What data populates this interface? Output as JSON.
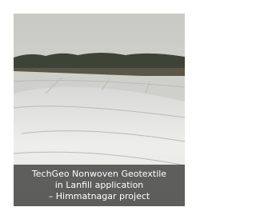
{
  "caption": {
    "lines": [
      "TechGeo Nonwoven Geotextile",
      "in Lanfill application",
      "– Himmatnagar project"
    ]
  }
}
